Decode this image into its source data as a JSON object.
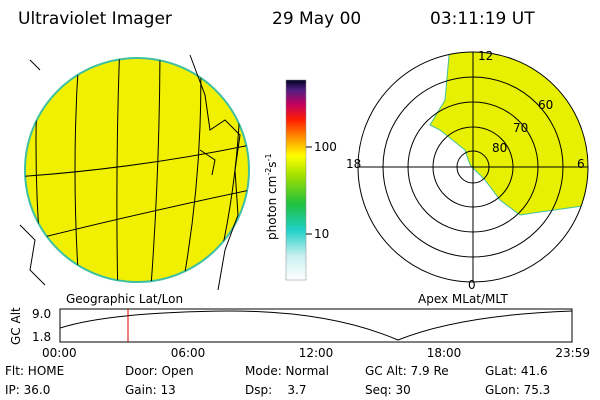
{
  "header": {
    "title": "Ultraviolet Imager",
    "date": "29 May 00",
    "time": "03:11:19 UT"
  },
  "colorbar": {
    "label": [
      "photon cm",
      "-2",
      "s",
      "-1"
    ],
    "ticks": [
      "100",
      "10"
    ]
  },
  "map": {
    "label": "Geographic Lat/Lon"
  },
  "polar": {
    "label": "Apex MLat/MLT",
    "mlt": [
      "12",
      "18",
      "6",
      "0"
    ],
    "mlat": [
      "60",
      "70",
      "80"
    ]
  },
  "altitude_plot": {
    "ylabel": "GC Alt",
    "yticks": [
      "9.0",
      "1.8"
    ],
    "xticks": [
      "00:00",
      "06:00",
      "12:00",
      "18:00",
      "23:59"
    ]
  },
  "info": [
    [
      "Flt: HOME",
      "Door: Open",
      "Mode: Normal",
      "GC Alt: 7.9 Re",
      "GLat: 41.6"
    ],
    [
      "IP: 36.0",
      "Gain: 13",
      "Dsp:    3.7",
      "Seq: 30",
      "GLon: 75.3"
    ]
  ]
}
